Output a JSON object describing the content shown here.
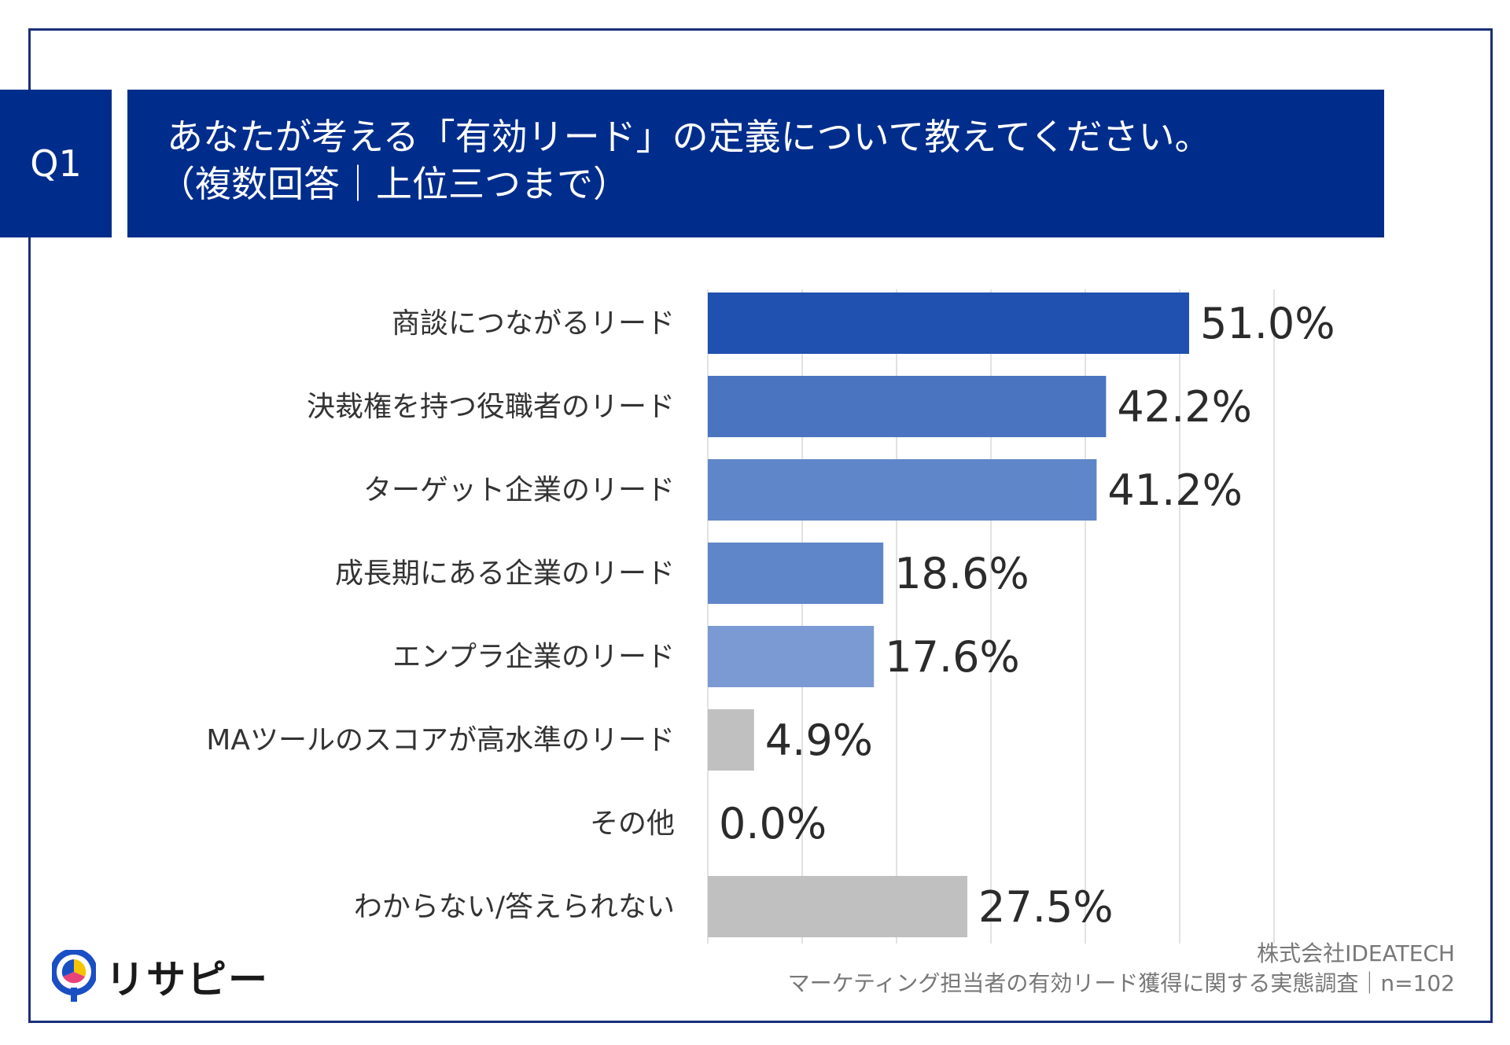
{
  "question": {
    "number": "Q1",
    "title": "あなたが考える「有効リード」の定義について教えてください。",
    "subtitle": "（複数回答｜上位三つまで）"
  },
  "chart_data": {
    "type": "bar",
    "orientation": "horizontal",
    "categories": [
      "商談につながるリード",
      "決裁権を持つ役職者のリード",
      "ターゲット企業のリード",
      "成長期にある企業のリード",
      "エンプラ企業のリード",
      "MAツールのスコアが高水準のリード",
      "その他",
      "わからない/答えられない"
    ],
    "values": [
      51.0,
      42.2,
      41.2,
      18.6,
      17.6,
      4.9,
      0.0,
      27.5
    ],
    "value_labels": [
      "51.0%",
      "42.2%",
      "41.2%",
      "18.6%",
      "17.6%",
      "4.9%",
      "0.0%",
      "27.5%"
    ],
    "bar_colors": [
      "#2050b0",
      "#4a74c0",
      "#5f86c8",
      "#5f86c8",
      "#7b9ad3",
      "#c0c0c0",
      "#c0c0c0",
      "#c0c0c0"
    ],
    "xlim": [
      0,
      60
    ],
    "grid": true,
    "gridline_color": "#d9d9d9",
    "title": "",
    "xlabel": "",
    "ylabel": ""
  },
  "brand": {
    "logo_text": "リサピー",
    "logo_colors": [
      "#1a4fc4",
      "#f5c400",
      "#e8427a"
    ]
  },
  "credit": {
    "company": "株式会社IDEATECH",
    "survey": "マーケティング担当者の有効リード獲得に関する実態調査｜n=102"
  },
  "colors": {
    "header_bg": "#002d8b",
    "frame": "#1a2f7a"
  }
}
